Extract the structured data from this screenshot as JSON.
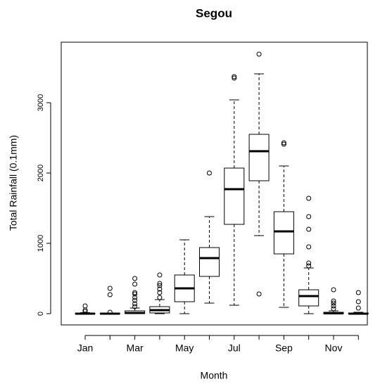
{
  "chart_data": {
    "type": "box",
    "title": "Segou",
    "x_label": "Month",
    "y_label": "Total Rainfall (0.1mm)",
    "categories": [
      "Jan",
      null,
      "Mar",
      null,
      "May",
      null,
      "Jul",
      null,
      "Sep",
      null,
      "Nov",
      null
    ],
    "min": [
      0,
      0,
      0,
      0,
      0,
      150,
      120,
      1110,
      90,
      0,
      0,
      0
    ],
    "q1": [
      0,
      0,
      0,
      10,
      170,
      530,
      1270,
      1890,
      850,
      110,
      0,
      0
    ],
    "median": [
      0,
      0,
      10,
      50,
      360,
      790,
      1770,
      2310,
      1170,
      250,
      5,
      0
    ],
    "q3": [
      5,
      5,
      40,
      100,
      550,
      940,
      2070,
      2550,
      1450,
      340,
      20,
      10
    ],
    "max": [
      15,
      10,
      80,
      200,
      1050,
      1380,
      3040,
      3410,
      2100,
      650,
      40,
      20
    ],
    "outliers": [
      [
        30,
        50,
        110
      ],
      [
        20,
        270,
        360
      ],
      [
        100,
        140,
        190,
        230,
        280,
        300,
        420,
        500
      ],
      [
        230,
        300,
        350,
        400,
        430,
        550
      ],
      [],
      [
        2000
      ],
      [
        3350,
        3370
      ],
      [
        280,
        3690
      ],
      [
        2410,
        2430
      ],
      [
        680,
        720,
        950,
        1200,
        1380,
        1640
      ],
      [
        70,
        110,
        150,
        180,
        340
      ],
      [
        80,
        170,
        300
      ]
    ],
    "color": "#000000",
    "ylim": [
      -160,
      3860
    ],
    "yticks": [
      0,
      1000,
      2000,
      3000
    ]
  }
}
